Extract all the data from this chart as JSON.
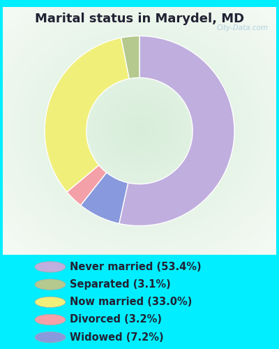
{
  "title": "Marital status in Marydel, MD",
  "title_fontsize": 13,
  "bg_outer": "#00eeff",
  "bg_inner_center": "#d8eeda",
  "bg_inner_edge": "#f0faf8",
  "watermark": "City-Data.com",
  "slices": [
    {
      "label": "Never married (53.4%)",
      "value": 53.4,
      "color": "#c0aede"
    },
    {
      "label": "Widowed (7.2%)",
      "value": 7.2,
      "color": "#8899dd"
    },
    {
      "label": "Divorced (3.2%)",
      "value": 3.2,
      "color": "#f4a0a8"
    },
    {
      "label": "Now married (33.0%)",
      "value": 33.0,
      "color": "#f0ef7a"
    },
    {
      "label": "Separated (3.1%)",
      "value": 3.1,
      "color": "#b5c98e"
    }
  ],
  "legend_order": [
    0,
    4,
    3,
    2,
    1
  ],
  "legend_labels": [
    "Never married (53.4%)",
    "Separated (3.1%)",
    "Now married (33.0%)",
    "Divorced (3.2%)",
    "Widowed (7.2%)"
  ],
  "legend_colors": [
    "#c0aede",
    "#b5c98e",
    "#f0ef7a",
    "#f4a0a8",
    "#8899dd"
  ],
  "legend_fontsize": 10.5,
  "donut_width": 0.44,
  "start_angle": 90
}
